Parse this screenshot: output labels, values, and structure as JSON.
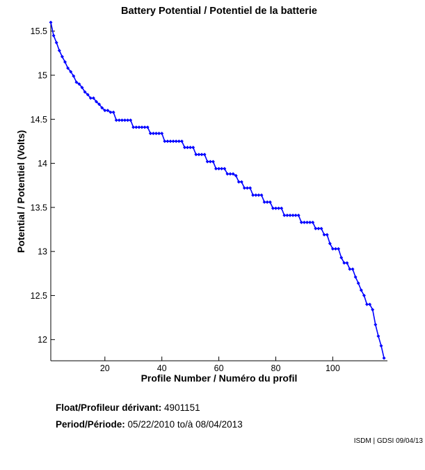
{
  "title": "Battery Potential / Potentiel de la batterie",
  "footer": {
    "float_label": "Float/Profileur dérivant:",
    "float_value": "4901151",
    "period_label": "Period/Période:",
    "period_value": "05/22/2010 to/à 08/04/2013",
    "credit": "ISDM | GDSI 09/04/13"
  },
  "chart_data": {
    "type": "line",
    "title": "Battery Potential / Potentiel de la batterie",
    "xlabel": "Profile Number / Numéro du profil",
    "ylabel": "Potential / Potentiel (Volts)",
    "series_name": "battery-potential",
    "line_color": "#0000FF",
    "axis_color": "#000000",
    "marker": "diamond",
    "grid": false,
    "legend": "none",
    "xlim": [
      1,
      119.2
    ],
    "ylim": [
      11.76,
      15.603
    ],
    "xticks": [
      20,
      40,
      60,
      80,
      100
    ],
    "yticks": [
      15.5,
      15,
      14.5,
      14,
      13.5,
      13,
      12.5,
      12
    ],
    "x": [
      1,
      2,
      3,
      4,
      5,
      6,
      7,
      8,
      9,
      10,
      11,
      12,
      13,
      14,
      15,
      16,
      17,
      18,
      19,
      20,
      21,
      22,
      23,
      24,
      25,
      26,
      27,
      28,
      29,
      30,
      31,
      32,
      33,
      34,
      35,
      36,
      37,
      38,
      39,
      40,
      41,
      42,
      43,
      44,
      45,
      46,
      47,
      48,
      49,
      50,
      51,
      52,
      53,
      54,
      55,
      56,
      57,
      58,
      59,
      60,
      61,
      62,
      63,
      64,
      65,
      66,
      67,
      68,
      69,
      70,
      71,
      72,
      73,
      74,
      75,
      76,
      77,
      78,
      79,
      80,
      81,
      82,
      83,
      84,
      85,
      86,
      87,
      88,
      89,
      90,
      91,
      92,
      93,
      94,
      95,
      96,
      97,
      98,
      99,
      100,
      101,
      102,
      103,
      104,
      105,
      106,
      107,
      108,
      109,
      110,
      111,
      112,
      113,
      114,
      115,
      116,
      117,
      118
    ],
    "y": [
      15.6,
      15.45,
      15.37,
      15.28,
      15.21,
      15.15,
      15.08,
      15.04,
      14.99,
      14.92,
      14.9,
      14.86,
      14.81,
      14.78,
      14.74,
      14.74,
      14.7,
      14.67,
      14.63,
      14.6,
      14.6,
      14.58,
      14.58,
      14.49,
      14.49,
      14.49,
      14.49,
      14.49,
      14.49,
      14.41,
      14.41,
      14.41,
      14.41,
      14.41,
      14.41,
      14.34,
      14.34,
      14.34,
      14.34,
      14.34,
      14.25,
      14.25,
      14.25,
      14.25,
      14.25,
      14.25,
      14.25,
      14.18,
      14.18,
      14.18,
      14.18,
      14.1,
      14.1,
      14.1,
      14.1,
      14.02,
      14.02,
      14.02,
      13.94,
      13.94,
      13.94,
      13.94,
      13.88,
      13.88,
      13.88,
      13.86,
      13.79,
      13.79,
      13.72,
      13.72,
      13.72,
      13.64,
      13.64,
      13.64,
      13.64,
      13.56,
      13.56,
      13.56,
      13.49,
      13.49,
      13.49,
      13.49,
      13.41,
      13.41,
      13.41,
      13.41,
      13.41,
      13.41,
      13.33,
      13.33,
      13.33,
      13.33,
      13.33,
      13.26,
      13.26,
      13.26,
      13.19,
      13.19,
      13.09,
      13.03,
      13.03,
      13.03,
      12.93,
      12.87,
      12.87,
      12.8,
      12.8,
      12.71,
      12.64,
      12.56,
      12.5,
      12.4,
      12.4,
      12.34,
      12.17,
      12.04,
      11.93,
      11.79
    ]
  }
}
